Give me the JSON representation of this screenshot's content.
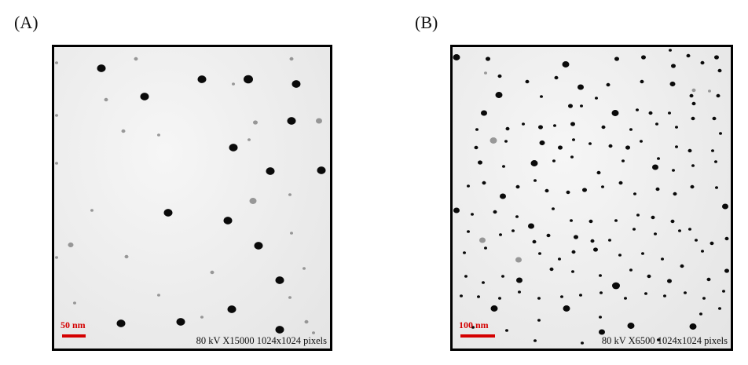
{
  "panel_a": {
    "label": "(A)",
    "scale_label": "50 nm",
    "info": "80 kV X15000 1024x1024 pixels"
  },
  "panel_b": {
    "label": "(B)",
    "scale_label": "100 nm",
    "info": "80 kV X6500 1024x1024 pixels"
  },
  "colors": {
    "scale_bar": "#d40000",
    "particle": "#0a0a0a",
    "particle_faint": "#7a7a7a",
    "frame": "#000000"
  }
}
